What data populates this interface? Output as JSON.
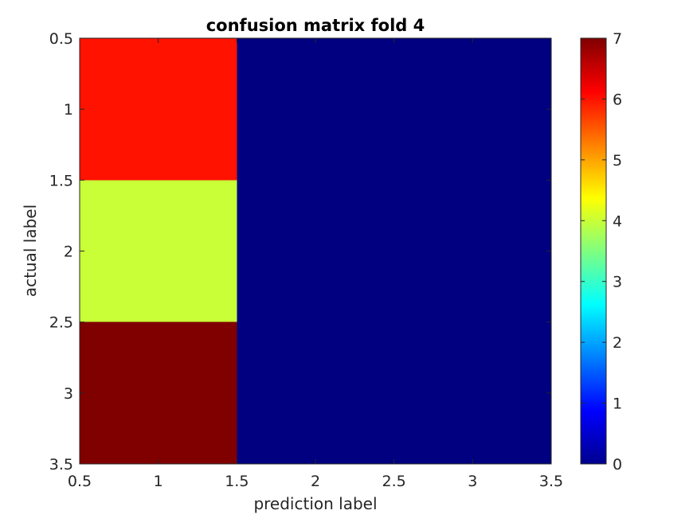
{
  "chart_data": {
    "type": "heatmap",
    "title": "confusion matrix fold 4",
    "xlabel": "prediction label",
    "ylabel": "actual label",
    "xlim": [
      0.5,
      3.5
    ],
    "ylim": [
      0.5,
      3.5
    ],
    "x_ticks": [
      "0.5",
      "1",
      "1.5",
      "2",
      "2.5",
      "3",
      "3.5"
    ],
    "y_ticks": [
      "0.5",
      "1",
      "1.5",
      "2",
      "2.5",
      "3",
      "3.5"
    ],
    "y_axis_direction": "reverse",
    "rows": [
      "1",
      "2",
      "3"
    ],
    "columns": [
      "1",
      "2",
      "3"
    ],
    "values": [
      [
        6,
        0,
        0
      ],
      [
        4,
        0,
        0
      ],
      [
        7,
        0,
        0
      ]
    ],
    "colorbar": {
      "colormap": "jet",
      "range": [
        0,
        7
      ],
      "ticks": [
        "0",
        "1",
        "2",
        "3",
        "4",
        "5",
        "6",
        "7"
      ]
    },
    "grid": false
  }
}
